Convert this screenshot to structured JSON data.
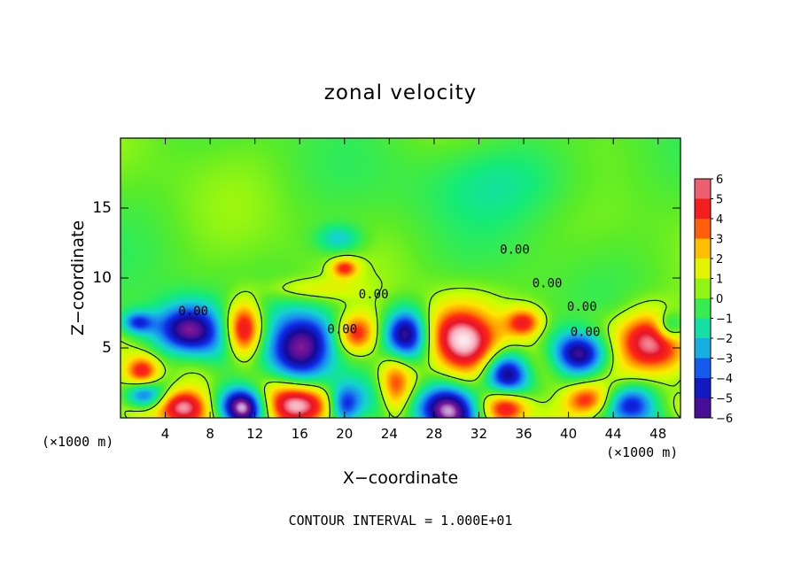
{
  "chart_data": {
    "type": "heatmap",
    "title": "zonal velocity",
    "xlabel": "X−coordinate",
    "ylabel": "Z−coordinate",
    "x_unit_left": "(×1000 m)",
    "x_unit_right": "(×1000 m)",
    "footer": "CONTOUR INTERVAL = 1.000E+01",
    "xlim": [
      0,
      50
    ],
    "ylim": [
      0,
      20
    ],
    "xticks": [
      4,
      8,
      12,
      16,
      20,
      24,
      28,
      32,
      36,
      40,
      44,
      48
    ],
    "yticks": [
      5,
      10,
      15
    ],
    "colorbar": {
      "ticks": [
        6,
        5,
        4,
        3,
        2,
        1,
        0,
        -1,
        -2,
        -3,
        -4,
        -5,
        -6
      ],
      "tick_labels": [
        "6",
        "5",
        "4",
        "3",
        "2",
        "1",
        "0",
        "−1",
        "−2",
        "−3",
        "−4",
        "−5",
        "−6"
      ],
      "colors": [
        "#f7b8c0",
        "#f03030",
        "#ff1a1a",
        "#ff8a00",
        "#ffd400",
        "#d8ff00",
        "#66ee22",
        "#22ee66",
        "#11ddcc",
        "#18aaee",
        "#1144ee",
        "#0a0ab8",
        "#6a1a9a"
      ]
    },
    "contour_labels": [
      {
        "text": "0.00",
        "x": 6.5,
        "y": 7.6
      },
      {
        "text": "0.00",
        "x": 19.8,
        "y": 6.3
      },
      {
        "text": "0.00",
        "x": 22.6,
        "y": 8.8
      },
      {
        "text": "0.00",
        "x": 35.2,
        "y": 12.0
      },
      {
        "text": "0.00",
        "x": 38.1,
        "y": 9.6
      },
      {
        "text": "0.00",
        "x": 41.2,
        "y": 7.9
      },
      {
        "text": "0.00",
        "x": 41.5,
        "y": 6.1
      }
    ],
    "features": [
      {
        "sign": "neg",
        "x": 6.0,
        "z": 6.3,
        "amp": 6.0,
        "rx": 3.0,
        "rz": 1.9
      },
      {
        "sign": "pos",
        "x": 11.0,
        "z": 6.3,
        "amp": 5.5,
        "rx": 1.6,
        "rz": 2.0
      },
      {
        "sign": "neg",
        "x": 16.5,
        "z": 5.2,
        "amp": 6.0,
        "rx": 3.2,
        "rz": 2.3
      },
      {
        "sign": "pos",
        "x": 21.0,
        "z": 6.0,
        "amp": 5.0,
        "rx": 1.9,
        "rz": 1.4
      },
      {
        "sign": "neg",
        "x": 25.5,
        "z": 6.0,
        "amp": 6.0,
        "rx": 2.0,
        "rz": 1.8
      },
      {
        "sign": "pos",
        "x": 30.5,
        "z": 5.5,
        "amp": 6.0,
        "rx": 3.4,
        "rz": 2.6
      },
      {
        "sign": "neg",
        "x": 34.5,
        "z": 3.2,
        "amp": 5.5,
        "rx": 2.0,
        "rz": 1.7
      },
      {
        "sign": "pos",
        "x": 36.0,
        "z": 6.8,
        "amp": 4.0,
        "rx": 1.6,
        "rz": 1.0
      },
      {
        "sign": "neg",
        "x": 41.0,
        "z": 4.5,
        "amp": 5.0,
        "rx": 2.4,
        "rz": 1.5
      },
      {
        "sign": "pos",
        "x": 47.0,
        "z": 5.2,
        "amp": 6.0,
        "rx": 3.0,
        "rz": 2.3
      },
      {
        "sign": "pos",
        "x": 2.0,
        "z": 3.3,
        "amp": 4.5,
        "rx": 1.5,
        "rz": 1.1
      },
      {
        "sign": "neg",
        "x": 2.0,
        "z": 1.6,
        "amp": 4.5,
        "rx": 1.8,
        "rz": 1.0
      },
      {
        "sign": "pos",
        "x": 5.5,
        "z": 0.8,
        "amp": 6.0,
        "rx": 2.2,
        "rz": 1.3
      },
      {
        "sign": "neg",
        "x": 11.0,
        "z": 0.8,
        "amp": 6.0,
        "rx": 2.0,
        "rz": 1.4
      },
      {
        "sign": "pos",
        "x": 16.0,
        "z": 0.9,
        "amp": 6.0,
        "rx": 2.8,
        "rz": 1.6
      },
      {
        "sign": "neg",
        "x": 20.0,
        "z": 0.8,
        "amp": 5.0,
        "rx": 1.5,
        "rz": 1.5
      },
      {
        "sign": "pos",
        "x": 24.5,
        "z": 2.0,
        "amp": 4.0,
        "rx": 1.5,
        "rz": 2.2
      },
      {
        "sign": "neg",
        "x": 29.5,
        "z": 0.8,
        "amp": 6.0,
        "rx": 3.0,
        "rz": 1.8
      },
      {
        "sign": "pos",
        "x": 34.5,
        "z": 0.8,
        "amp": 5.0,
        "rx": 2.0,
        "rz": 1.3
      },
      {
        "sign": "pos",
        "x": 41.5,
        "z": 1.2,
        "amp": 5.0,
        "rx": 2.0,
        "rz": 1.2
      },
      {
        "sign": "neg",
        "x": 45.5,
        "z": 1.0,
        "amp": 5.5,
        "rx": 2.2,
        "rz": 1.5
      },
      {
        "sign": "pos",
        "x": 20.0,
        "z": 10.7,
        "amp": 3.8,
        "rx": 1.2,
        "rz": 0.7
      },
      {
        "sign": "neg",
        "x": 19.5,
        "z": 12.8,
        "amp": 2.2,
        "rx": 2.0,
        "rz": 1.0
      },
      {
        "sign": "neg",
        "x": 1.5,
        "z": 6.8,
        "amp": 3.5,
        "rx": 1.4,
        "rz": 0.8
      },
      {
        "sign": "neg",
        "x": 49.0,
        "z": 6.5,
        "amp": 3.0,
        "rx": 1.2,
        "rz": 1.0
      },
      {
        "sign": "pos",
        "x": 17.0,
        "z": 9.2,
        "amp": 1.5,
        "rx": 4.0,
        "rz": 0.8
      },
      {
        "sign": "neg",
        "x": 35.0,
        "z": 17.0,
        "amp": 1.2,
        "rx": 8.0,
        "rz": 3.0
      }
    ]
  }
}
